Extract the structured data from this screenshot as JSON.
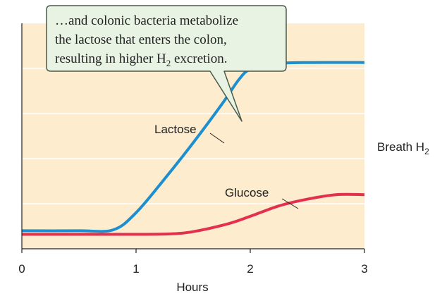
{
  "colors": {
    "plot_background": "#fdeccd",
    "gridline": "#ffffff",
    "axis": "#222222",
    "lactose": "#1d8fd0",
    "glucose": "#e3304e",
    "callout_fill": "#e9f3e4",
    "callout_stroke": "#4a5a4a"
  },
  "chart_data": {
    "type": "line",
    "xlabel": "Hours",
    "ylabel_main": "Breath H",
    "ylabel_sub": "2",
    "x_ticks": [
      "0",
      "1",
      "2",
      "3"
    ],
    "xlim": [
      0,
      3
    ],
    "ylim": [
      0,
      5
    ],
    "grid": "horizontal",
    "y_units_note": "relative breath H2 level (no numeric scale shown)",
    "series": [
      {
        "name": "Lactose",
        "x": [
          0,
          0.5,
          0.8,
          1.0,
          1.25,
          1.5,
          1.75,
          1.9,
          2.0,
          2.2,
          2.5,
          3.0
        ],
        "y": [
          0.4,
          0.4,
          0.42,
          0.8,
          1.55,
          2.35,
          3.2,
          3.75,
          3.98,
          4.1,
          4.13,
          4.13
        ]
      },
      {
        "name": "Glucose",
        "x": [
          0,
          0.5,
          1.0,
          1.3,
          1.5,
          1.8,
          2.0,
          2.25,
          2.5,
          2.75,
          3.0
        ],
        "y": [
          0.32,
          0.32,
          0.32,
          0.33,
          0.38,
          0.55,
          0.72,
          0.95,
          1.1,
          1.2,
          1.2
        ]
      }
    ],
    "callout": {
      "line1": "…and colonic bacteria metabolize",
      "line2": "the lactose that enters the colon,",
      "line3_main": "resulting in higher H",
      "line3_sub": "2",
      "line3_end": " excretion."
    }
  }
}
